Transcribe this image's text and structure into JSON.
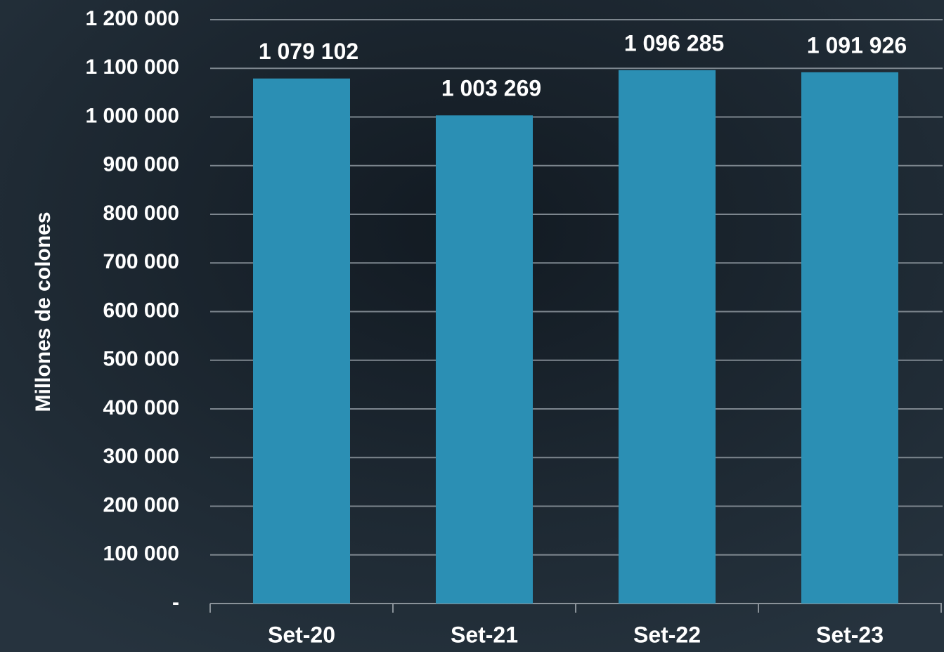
{
  "chart_data": {
    "type": "bar",
    "y_axis_label": "Millones de colones",
    "categories": [
      "Set-20",
      "Set-21",
      "Set-22",
      "Set-23"
    ],
    "values": [
      1079102,
      1003269,
      1096285,
      1091926
    ],
    "value_labels": [
      "1 079 102",
      "1 003 269",
      "1 096 285",
      "1 091 926"
    ],
    "color": "#2b8fb4",
    "ylim": [
      0,
      1200000
    ],
    "yticks": [
      {
        "value": 0,
        "label": "-"
      },
      {
        "value": 100000,
        "label": "100 000"
      },
      {
        "value": 200000,
        "label": "200 000"
      },
      {
        "value": 300000,
        "label": "300 000"
      },
      {
        "value": 400000,
        "label": "400 000"
      },
      {
        "value": 500000,
        "label": "500 000"
      },
      {
        "value": 600000,
        "label": "600 000"
      },
      {
        "value": 700000,
        "label": "700 000"
      },
      {
        "value": 800000,
        "label": "800 000"
      },
      {
        "value": 900000,
        "label": "900 000"
      },
      {
        "value": 1000000,
        "label": "1 000 000"
      },
      {
        "value": 1100000,
        "label": "1 100 000"
      },
      {
        "value": 1200000,
        "label": "1 200 000"
      }
    ],
    "grid": true
  }
}
